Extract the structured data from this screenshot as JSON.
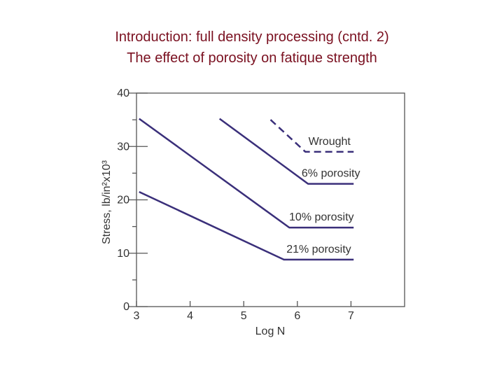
{
  "title_lines": [
    "Introduction: full density processing (cntd. 2)",
    "The effect of porosity on fatique strength"
  ],
  "chart_data": {
    "type": "line",
    "xlabel": "Log N",
    "ylabel": "Stress, lb/in²x10³",
    "xlim": [
      3,
      8
    ],
    "ylim": [
      0,
      40
    ],
    "x_ticks": [
      3,
      4,
      5,
      6,
      7
    ],
    "y_ticks": [
      0,
      10,
      20,
      30,
      40
    ],
    "y_minor_ticks": [
      5,
      15,
      25,
      35
    ],
    "line_color": "#3a2f7a",
    "series": [
      {
        "name": "Wrought",
        "dashed": true,
        "points": [
          [
            5.5,
            35
          ],
          [
            6.15,
            29
          ],
          [
            7.05,
            29
          ]
        ]
      },
      {
        "name": "6% porosity",
        "dashed": false,
        "points": [
          [
            4.55,
            35.2
          ],
          [
            6.2,
            23
          ],
          [
            7.05,
            23
          ]
        ]
      },
      {
        "name": "10% porosity",
        "dashed": false,
        "points": [
          [
            3.05,
            35.2
          ],
          [
            5.85,
            14.8
          ],
          [
            7.05,
            14.8
          ]
        ]
      },
      {
        "name": "21% porosity",
        "dashed": false,
        "points": [
          [
            3.05,
            21.5
          ],
          [
            5.75,
            8.8
          ],
          [
            7.05,
            8.8
          ]
        ]
      }
    ]
  }
}
